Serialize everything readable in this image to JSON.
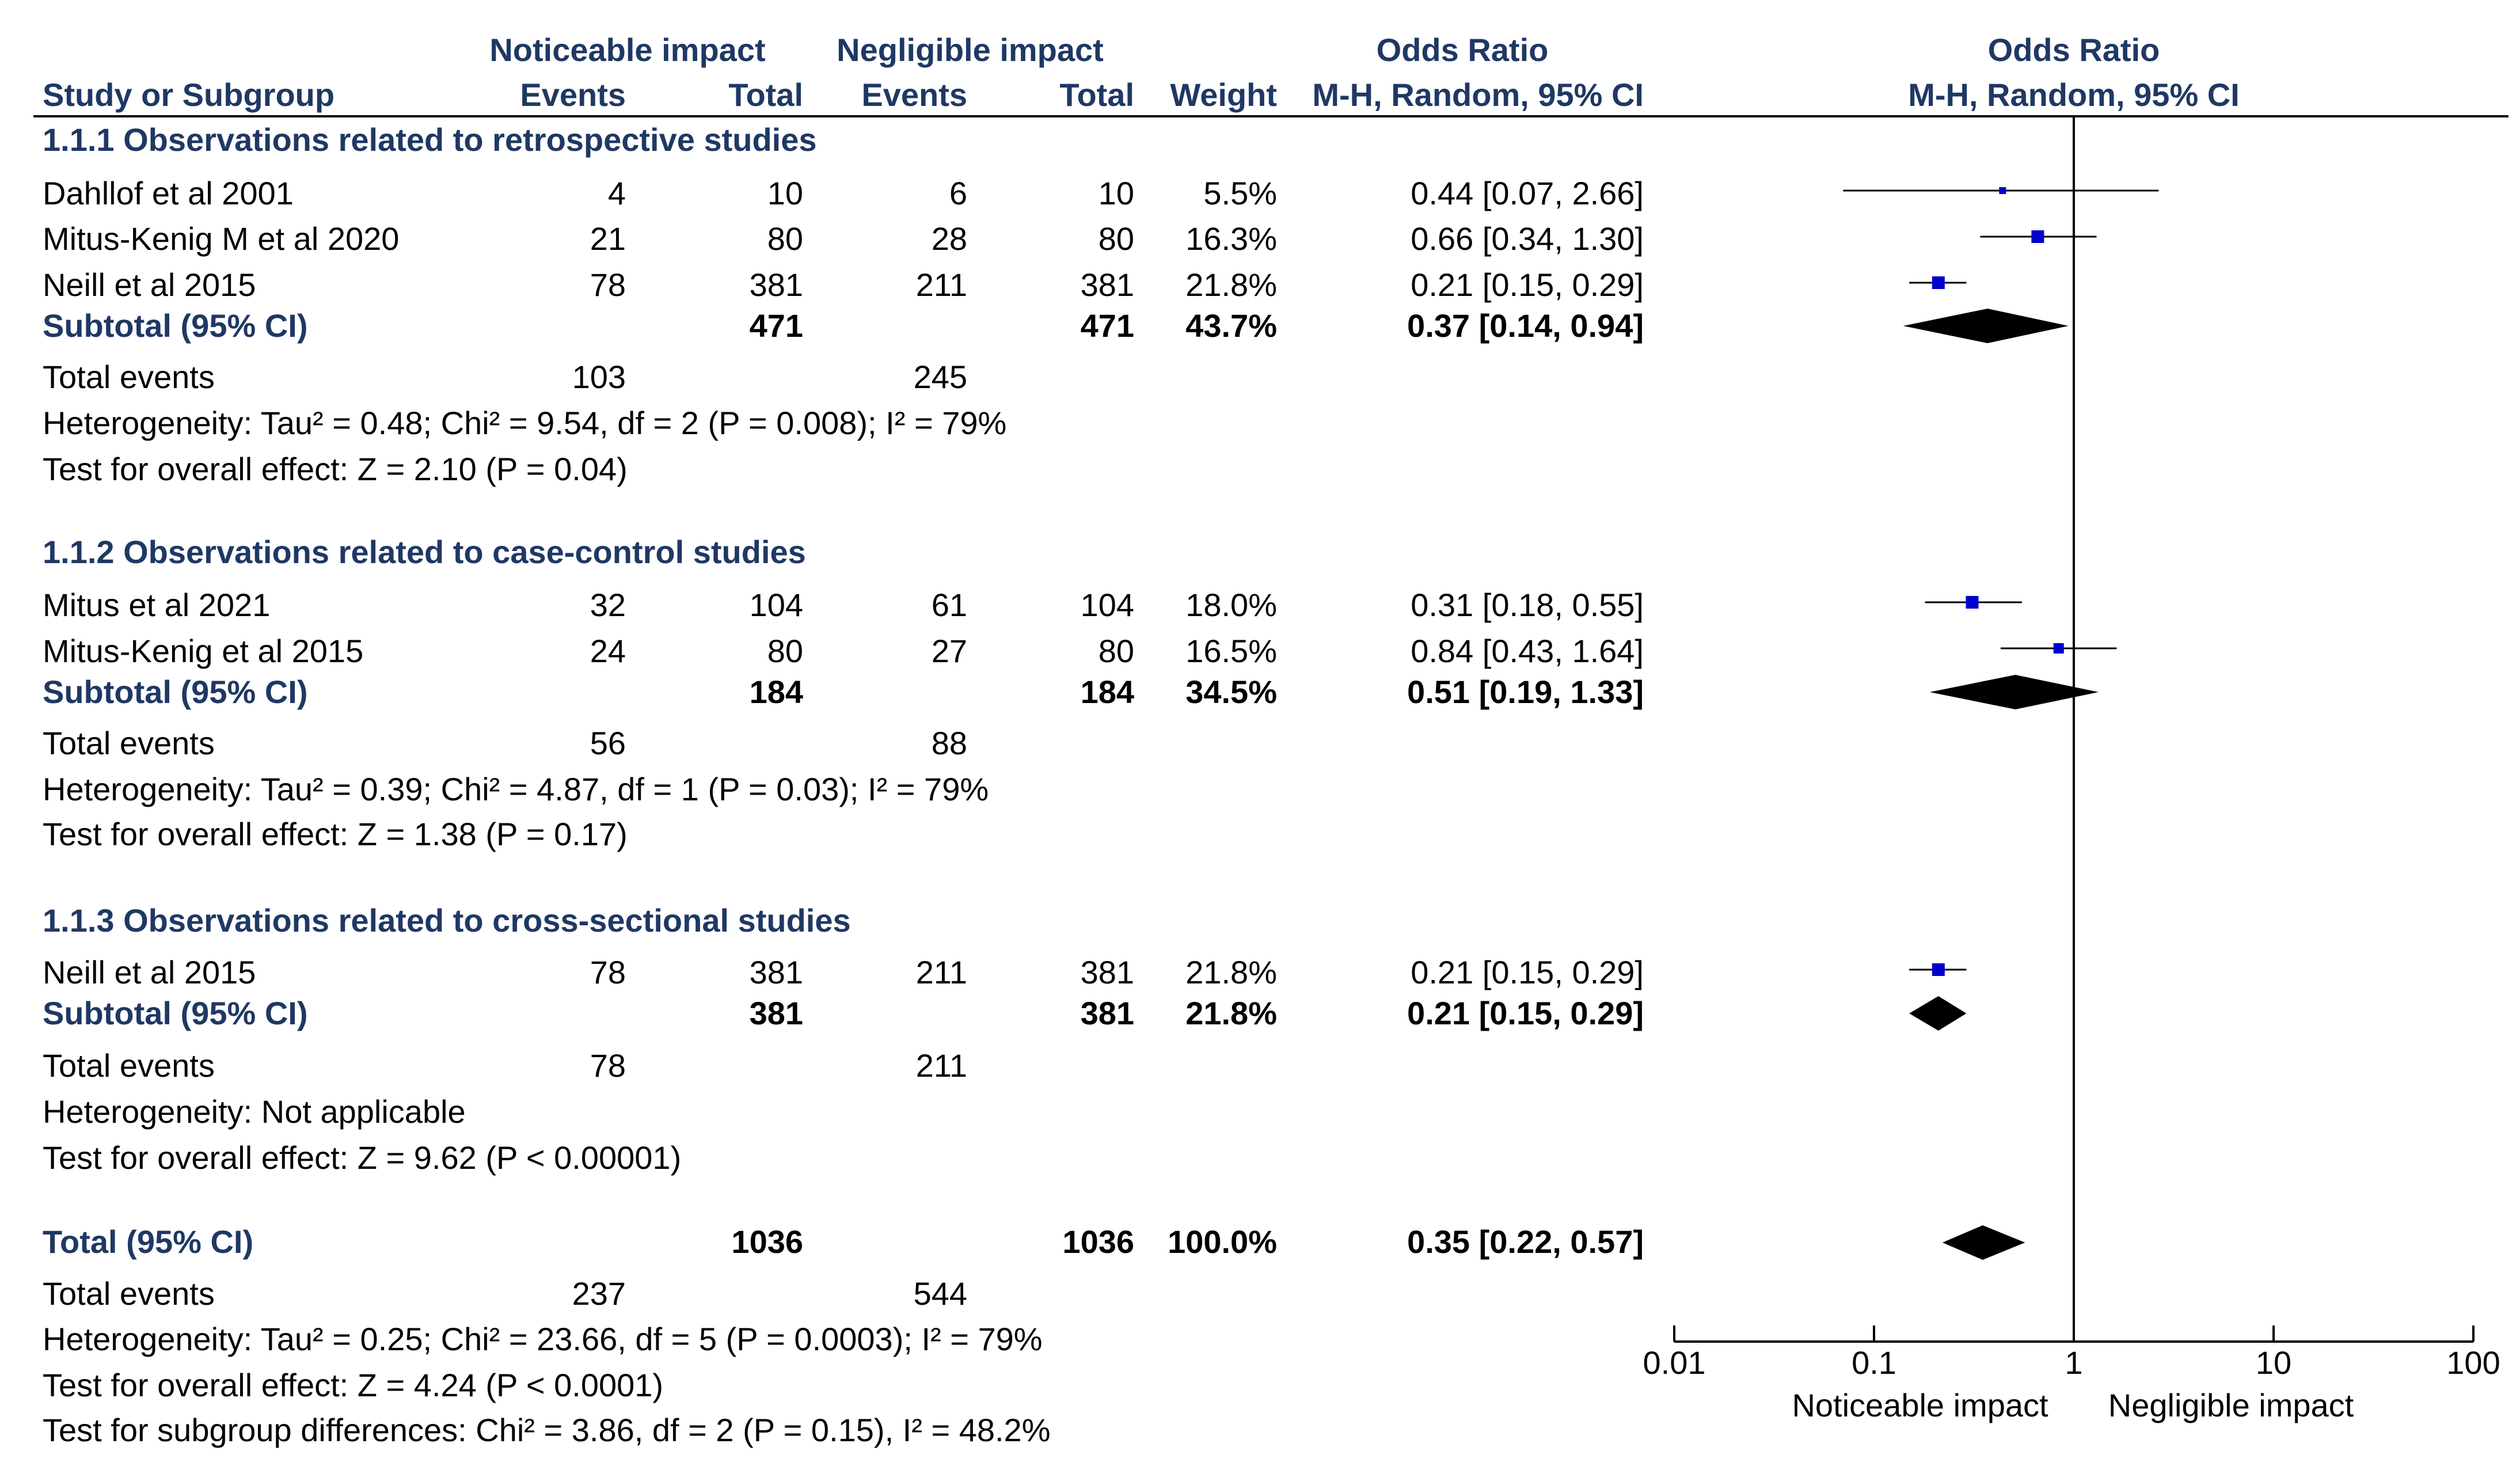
{
  "chart_data": {
    "type": "forest",
    "headers": {
      "group1": "Noticeable impact",
      "group2": "Negligible impact",
      "or_title": "Odds Ratio",
      "study": "Study or Subgroup",
      "events": "Events",
      "total": "Total",
      "weight": "Weight",
      "method": "M-H, Random, 95% CI"
    },
    "subgroups": [
      {
        "title": "1.1.1 Observations related to retrospective studies",
        "studies": [
          {
            "name": "Dahllof et al 2001",
            "e1": "4",
            "t1": "10",
            "e2": "6",
            "t2": "10",
            "weight": "5.5%",
            "ci": "0.44 [0.07, 2.66]",
            "or": 0.44,
            "lo": 0.07,
            "hi": 2.66
          },
          {
            "name": "Mitus-Kenig M et al 2020",
            "e1": "21",
            "t1": "80",
            "e2": "28",
            "t2": "80",
            "weight": "16.3%",
            "ci": "0.66 [0.34, 1.30]",
            "or": 0.66,
            "lo": 0.34,
            "hi": 1.3
          },
          {
            "name": "Neill et al 2015",
            "e1": "78",
            "t1": "381",
            "e2": "211",
            "t2": "381",
            "weight": "21.8%",
            "ci": "0.21 [0.15, 0.29]",
            "or": 0.21,
            "lo": 0.15,
            "hi": 0.29
          }
        ],
        "subtotal": {
          "label": "Subtotal (95% CI)",
          "t1": "471",
          "t2": "471",
          "weight": "43.7%",
          "ci": "0.37 [0.14, 0.94]",
          "or": 0.37,
          "lo": 0.14,
          "hi": 0.94
        },
        "events": {
          "label": "Total events",
          "e1": "103",
          "e2": "245"
        },
        "heterogeneity": "Heterogeneity: Tau² = 0.48; Chi² = 9.54, df = 2 (P = 0.008); I² = 79%",
        "overall": "Test for overall effect: Z = 2.10 (P = 0.04)"
      },
      {
        "title": "1.1.2 Observations related to case-control studies",
        "studies": [
          {
            "name": "Mitus et al 2021",
            "e1": "32",
            "t1": "104",
            "e2": "61",
            "t2": "104",
            "weight": "18.0%",
            "ci": "0.31 [0.18, 0.55]",
            "or": 0.31,
            "lo": 0.18,
            "hi": 0.55
          },
          {
            "name": "Mitus-Kenig et al 2015",
            "e1": "24",
            "t1": "80",
            "e2": "27",
            "t2": "80",
            "weight": "16.5%",
            "ci": "0.84 [0.43, 1.64]",
            "or": 0.84,
            "lo": 0.43,
            "hi": 1.64
          }
        ],
        "subtotal": {
          "label": "Subtotal (95% CI)",
          "t1": "184",
          "t2": "184",
          "weight": "34.5%",
          "ci": "0.51 [0.19, 1.33]",
          "or": 0.51,
          "lo": 0.19,
          "hi": 1.33
        },
        "events": {
          "label": "Total events",
          "e1": "56",
          "e2": "88"
        },
        "heterogeneity": "Heterogeneity: Tau² = 0.39; Chi² = 4.87, df = 1 (P = 0.03); I² = 79%",
        "overall": "Test for overall effect: Z = 1.38 (P = 0.17)"
      },
      {
        "title": "1.1.3 Observations related to cross-sectional studies",
        "studies": [
          {
            "name": "Neill et al 2015",
            "e1": "78",
            "t1": "381",
            "e2": "211",
            "t2": "381",
            "weight": "21.8%",
            "ci": "0.21 [0.15, 0.29]",
            "or": 0.21,
            "lo": 0.15,
            "hi": 0.29
          }
        ],
        "subtotal": {
          "label": "Subtotal (95% CI)",
          "t1": "381",
          "t2": "381",
          "weight": "21.8%",
          "ci": "0.21 [0.15, 0.29]",
          "or": 0.21,
          "lo": 0.15,
          "hi": 0.29
        },
        "events": {
          "label": "Total events",
          "e1": "78",
          "e2": "211"
        },
        "heterogeneity": "Heterogeneity: Not applicable",
        "overall": "Test for overall effect: Z = 9.62 (P < 0.00001)"
      }
    ],
    "total": {
      "label": "Total (95% CI)",
      "t1": "1036",
      "t2": "1036",
      "weight": "100.0%",
      "ci": "0.35 [0.22, 0.57]",
      "or": 0.35,
      "lo": 0.22,
      "hi": 0.57,
      "events": {
        "label": "Total events",
        "e1": "237",
        "e2": "544"
      },
      "heterogeneity": "Heterogeneity: Tau² = 0.25; Chi² = 23.66, df = 5 (P = 0.0003); I² = 79%",
      "overall": "Test for overall effect: Z = 4.24 (P < 0.0001)",
      "subgroup_diff": "Test for subgroup differences: Chi² = 3.86, df = 2 (P = 0.15), I² = 48.2%"
    },
    "axis": {
      "scale": "log",
      "range": [
        0.01,
        100
      ],
      "ticks": [
        0.01,
        0.1,
        1,
        10,
        100
      ],
      "tick_labels": [
        "0.01",
        "0.1",
        "1",
        "10",
        "100"
      ],
      "left_label": "Noticeable impact",
      "right_label": "Negligible impact",
      "null_value": 1
    },
    "colors": {
      "header": "#1f3864",
      "marker": "#0000cc",
      "text": "#000000"
    }
  }
}
